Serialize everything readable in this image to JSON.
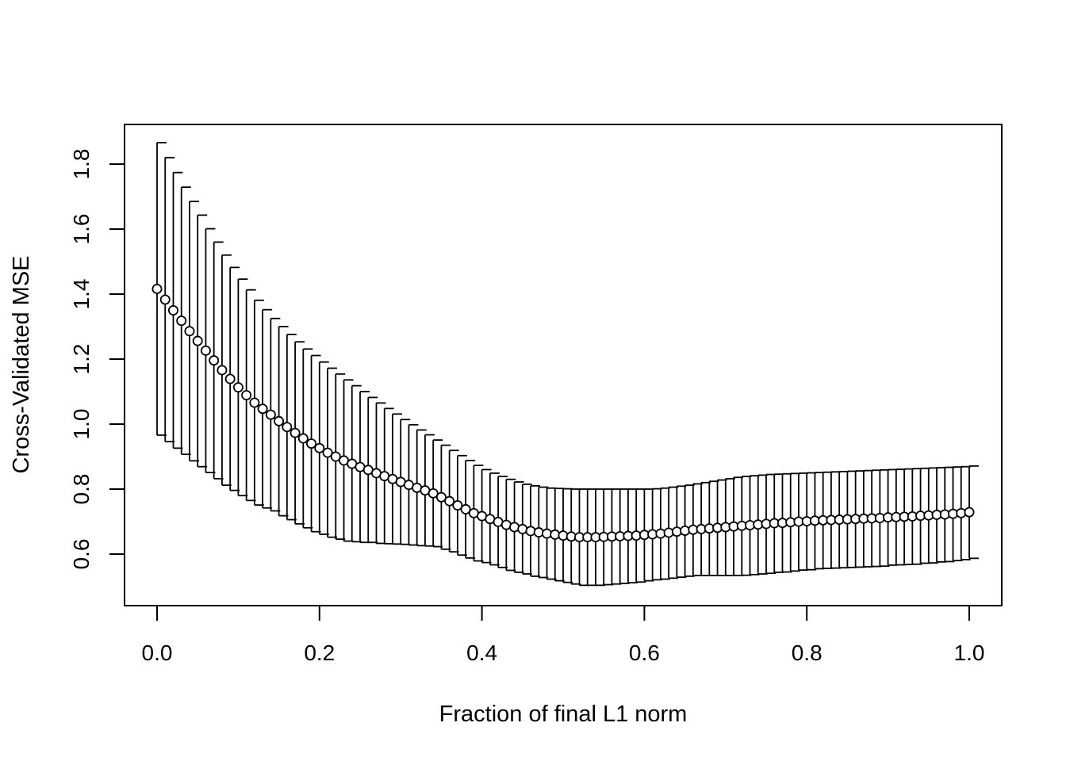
{
  "chart_data": {
    "type": "scatter",
    "title": "",
    "xlabel": "Fraction of final L1 norm",
    "ylabel": "Cross-Validated MSE",
    "xlim": [
      -0.04,
      1.04
    ],
    "ylim": [
      0.535,
      1.915
    ],
    "x_ticks": [
      0.0,
      0.2,
      0.4,
      0.6,
      0.8,
      1.0
    ],
    "x_tick_labels": [
      "0.0",
      "0.2",
      "0.4",
      "0.6",
      "0.8",
      "1.0"
    ],
    "y_ticks": [
      0.6,
      0.8,
      1.0,
      1.2,
      1.4,
      1.6,
      1.8
    ],
    "y_tick_labels": [
      "0.6",
      "0.8",
      "1.0",
      "1.2",
      "1.4",
      "1.6",
      "1.8"
    ],
    "grid": false,
    "legend": false,
    "marker": "open-circle",
    "error_bars": true,
    "x_start": 0.0,
    "x_step": 0.01,
    "cv_mse": [
      1.416,
      1.383,
      1.35,
      1.318,
      1.286,
      1.256,
      1.226,
      1.196,
      1.166,
      1.139,
      1.113,
      1.089,
      1.066,
      1.047,
      1.029,
      1.009,
      0.991,
      0.973,
      0.956,
      0.94,
      0.926,
      0.912,
      0.9,
      0.888,
      0.878,
      0.868,
      0.859,
      0.849,
      0.84,
      0.831,
      0.822,
      0.813,
      0.804,
      0.796,
      0.787,
      0.775,
      0.763,
      0.75,
      0.738,
      0.726,
      0.717,
      0.708,
      0.699,
      0.69,
      0.683,
      0.677,
      0.671,
      0.667,
      0.663,
      0.66,
      0.657,
      0.654,
      0.652,
      0.652,
      0.652,
      0.653,
      0.654,
      0.655,
      0.656,
      0.657,
      0.659,
      0.661,
      0.663,
      0.666,
      0.669,
      0.672,
      0.675,
      0.677,
      0.679,
      0.681,
      0.683,
      0.685,
      0.687,
      0.689,
      0.691,
      0.693,
      0.695,
      0.696,
      0.698,
      0.7,
      0.701,
      0.703,
      0.704,
      0.705,
      0.706,
      0.707,
      0.708,
      0.709,
      0.71,
      0.711,
      0.713,
      0.714,
      0.715,
      0.716,
      0.718,
      0.719,
      0.721,
      0.722,
      0.724,
      0.726,
      0.729
    ],
    "upper": [
      1.866,
      1.82,
      1.774,
      1.729,
      1.685,
      1.643,
      1.601,
      1.56,
      1.52,
      1.482,
      1.446,
      1.413,
      1.381,
      1.352,
      1.325,
      1.3,
      1.276,
      1.253,
      1.231,
      1.211,
      1.191,
      1.172,
      1.154,
      1.136,
      1.118,
      1.1,
      1.082,
      1.065,
      1.048,
      1.031,
      1.014,
      0.998,
      0.982,
      0.967,
      0.951,
      0.935,
      0.919,
      0.903,
      0.888,
      0.873,
      0.86,
      0.849,
      0.839,
      0.83,
      0.822,
      0.815,
      0.81,
      0.806,
      0.803,
      0.802,
      0.801,
      0.8,
      0.8,
      0.8,
      0.8,
      0.8,
      0.8,
      0.8,
      0.8,
      0.8,
      0.8,
      0.801,
      0.803,
      0.806,
      0.809,
      0.812,
      0.816,
      0.82,
      0.824,
      0.828,
      0.832,
      0.836,
      0.839,
      0.841,
      0.843,
      0.845,
      0.846,
      0.847,
      0.848,
      0.849,
      0.85,
      0.851,
      0.852,
      0.853,
      0.854,
      0.855,
      0.856,
      0.857,
      0.858,
      0.859,
      0.86,
      0.861,
      0.862,
      0.863,
      0.864,
      0.865,
      0.866,
      0.867,
      0.868,
      0.869,
      0.871
    ],
    "lower": [
      0.966,
      0.946,
      0.926,
      0.907,
      0.887,
      0.869,
      0.851,
      0.832,
      0.812,
      0.796,
      0.78,
      0.765,
      0.751,
      0.742,
      0.733,
      0.718,
      0.706,
      0.693,
      0.681,
      0.669,
      0.661,
      0.652,
      0.646,
      0.64,
      0.638,
      0.636,
      0.636,
      0.633,
      0.632,
      0.631,
      0.63,
      0.628,
      0.626,
      0.625,
      0.623,
      0.615,
      0.607,
      0.597,
      0.588,
      0.579,
      0.574,
      0.567,
      0.559,
      0.55,
      0.544,
      0.539,
      0.532,
      0.528,
      0.523,
      0.518,
      0.513,
      0.508,
      0.504,
      0.504,
      0.504,
      0.506,
      0.508,
      0.51,
      0.512,
      0.514,
      0.518,
      0.521,
      0.523,
      0.526,
      0.529,
      0.532,
      0.534,
      0.534,
      0.534,
      0.534,
      0.534,
      0.534,
      0.535,
      0.537,
      0.539,
      0.541,
      0.544,
      0.545,
      0.548,
      0.551,
      0.552,
      0.555,
      0.556,
      0.557,
      0.558,
      0.559,
      0.56,
      0.561,
      0.562,
      0.563,
      0.566,
      0.567,
      0.568,
      0.569,
      0.572,
      0.573,
      0.576,
      0.577,
      0.58,
      0.583,
      0.587
    ]
  }
}
